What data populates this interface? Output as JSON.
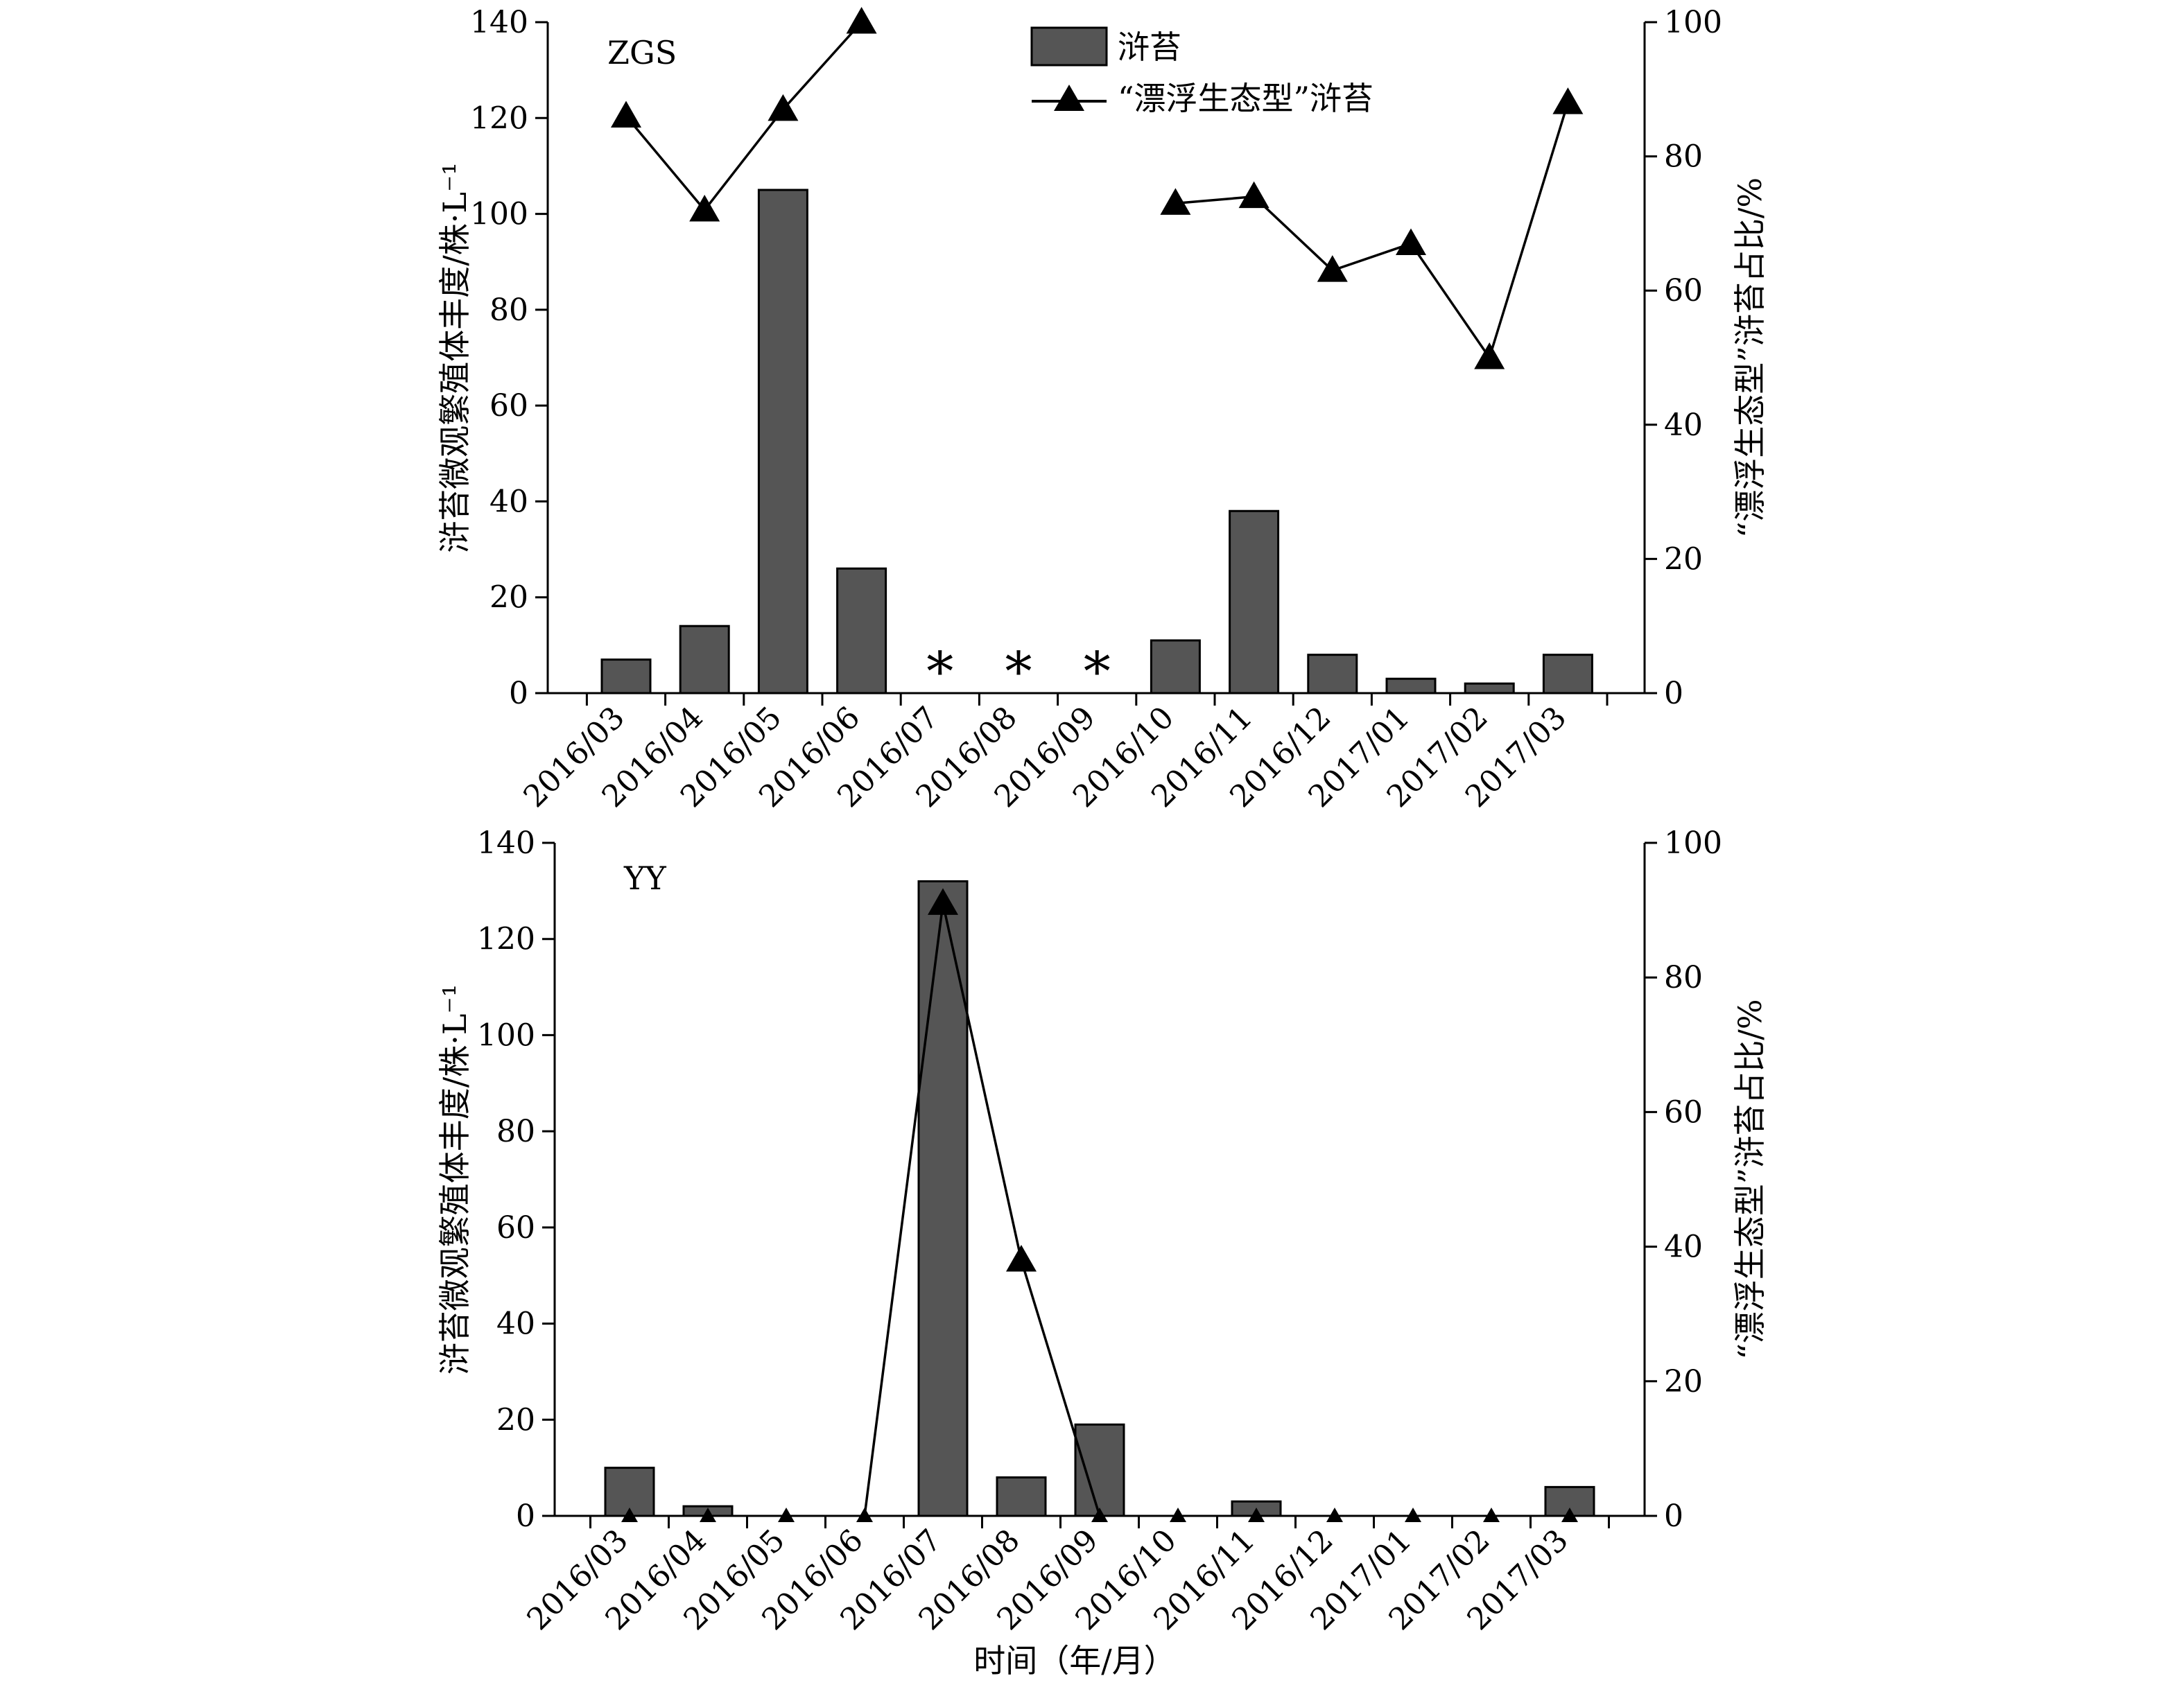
{
  "legend": {
    "bar_label": "浒苔",
    "line_label": "“漂浮生态型”浒苔"
  },
  "colors": {
    "bar_fill": "#555555",
    "bar_stroke": "#000000",
    "line": "#000000",
    "axis": "#000000"
  },
  "xlabel": "时间（年/月）",
  "chart_data": [
    {
      "type": "bar",
      "panel_label": "ZGS",
      "categories": [
        "2016/03",
        "2016/04",
        "2016/05",
        "2016/06",
        "2016/07",
        "2016/08",
        "2016/09",
        "2016/10",
        "2016/11",
        "2016/12",
        "2017/01",
        "2017/02",
        "2017/03"
      ],
      "values": [
        7,
        14,
        105,
        26,
        null,
        null,
        null,
        11,
        38,
        8,
        3,
        2,
        8
      ],
      "missing_markers": [
        "2016/07",
        "2016/08",
        "2016/09"
      ],
      "missing_symbol": "*",
      "ylabel": "浒苔微观繁殖体丰度/株·L⁻¹",
      "ylim": [
        0,
        140
      ],
      "yticks": [
        0,
        20,
        40,
        60,
        80,
        100,
        120,
        140
      ],
      "y2label": "“漂浮生态型”浒苔占比/%",
      "y2lim": [
        0,
        100
      ],
      "y2ticks": [
        0,
        20,
        40,
        60,
        80,
        100
      ],
      "series": [
        {
          "name": "“漂浮生态型”浒苔",
          "type": "line",
          "values": [
            86,
            72,
            87,
            100,
            null,
            null,
            null,
            73,
            74,
            63,
            67,
            50,
            88
          ],
          "segments": [
            [
              0,
              3
            ],
            [
              7,
              12
            ]
          ]
        }
      ]
    },
    {
      "type": "bar",
      "panel_label": "YY",
      "categories": [
        "2016/03",
        "2016/04",
        "2016/05",
        "2016/06",
        "2016/07",
        "2016/08",
        "2016/09",
        "2016/10",
        "2016/11",
        "2016/12",
        "2017/01",
        "2017/02",
        "2017/03"
      ],
      "values": [
        10,
        2,
        0,
        0,
        132,
        8,
        19,
        0,
        3,
        0,
        0,
        0,
        6
      ],
      "missing_markers": [],
      "ylabel": "浒苔微观繁殖体丰度/株·L⁻¹",
      "ylim": [
        0,
        140
      ],
      "yticks": [
        0,
        20,
        40,
        60,
        80,
        100,
        120,
        140
      ],
      "y2label": "“漂浮生态型”浒苔占比/%",
      "y2lim": [
        0,
        100
      ],
      "y2ticks": [
        0,
        20,
        40,
        60,
        80,
        100
      ],
      "series": [
        {
          "name": "“漂浮生态型”浒苔",
          "type": "line",
          "values": [
            0,
            0,
            0,
            0,
            91,
            38,
            0,
            0,
            0,
            0,
            0,
            0,
            0
          ],
          "segments": [
            [
              3,
              6
            ]
          ]
        }
      ]
    }
  ]
}
